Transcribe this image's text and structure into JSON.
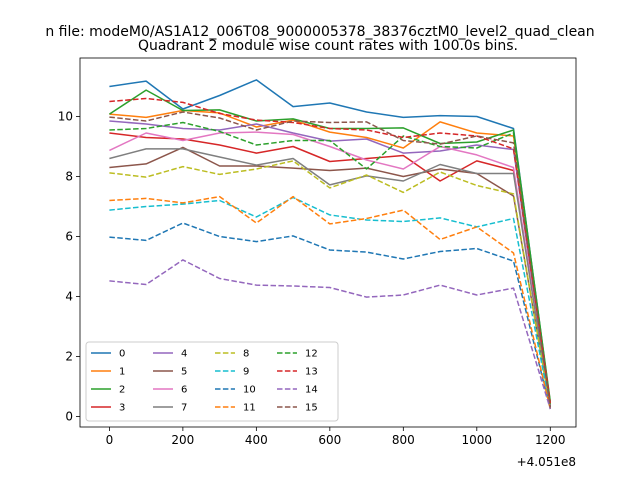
{
  "figure": {
    "suptitle": "n file: modeM0/AS1A12_006T08_9000005378_38376cztM0_level2_quad_clean",
    "offset_label": "+4.051e8"
  },
  "chart_data": {
    "type": "line",
    "title": "Quadrant 2 module wise count rates with 100.0s bins.",
    "xlabel": "",
    "ylabel": "",
    "x": [
      0,
      100,
      200,
      300,
      400,
      500,
      600,
      700,
      800,
      900,
      1000,
      1100,
      1200
    ],
    "xlim": [
      -80,
      1270
    ],
    "ylim": [
      -0.35,
      11.95
    ],
    "x_ticks": [
      "0",
      "200",
      "400",
      "600",
      "800",
      "1000",
      "1200"
    ],
    "y_ticks": [
      "0",
      "2",
      "4",
      "6",
      "8",
      "10"
    ],
    "grid": false,
    "legend": {
      "location": "lower left",
      "columns": 4
    },
    "series": [
      {
        "name": "0",
        "color": "#1f77b4",
        "style": "solid",
        "values": [
          11.0,
          11.18,
          10.25,
          10.7,
          11.22,
          10.33,
          10.45,
          10.15,
          9.97,
          10.03,
          10.0,
          9.6,
          0.45
        ]
      },
      {
        "name": "1",
        "color": "#ff7f0e",
        "style": "solid",
        "values": [
          10.08,
          9.97,
          10.2,
          10.12,
          9.65,
          9.88,
          9.48,
          9.3,
          8.95,
          9.82,
          9.45,
          9.35,
          0.4
        ]
      },
      {
        "name": "2",
        "color": "#2ca02c",
        "style": "solid",
        "values": [
          10.08,
          10.88,
          10.2,
          10.22,
          9.85,
          9.92,
          9.6,
          9.6,
          9.62,
          9.1,
          9.15,
          9.55,
          0.5
        ]
      },
      {
        "name": "3",
        "color": "#d62728",
        "style": "solid",
        "values": [
          9.45,
          9.3,
          9.25,
          9.05,
          8.78,
          9.0,
          8.5,
          8.6,
          8.7,
          7.85,
          8.52,
          8.2,
          0.35
        ]
      },
      {
        "name": "4",
        "color": "#9467bd",
        "style": "solid",
        "values": [
          9.85,
          9.75,
          9.6,
          9.55,
          9.75,
          9.45,
          9.18,
          9.25,
          8.78,
          8.85,
          9.05,
          8.9,
          0.3
        ]
      },
      {
        "name": "5",
        "color": "#8c564b",
        "style": "solid",
        "values": [
          8.3,
          8.42,
          8.97,
          8.35,
          8.35,
          8.28,
          8.2,
          8.28,
          8.0,
          8.25,
          8.1,
          7.35,
          0.3
        ]
      },
      {
        "name": "6",
        "color": "#e377c2",
        "style": "solid",
        "values": [
          8.87,
          9.45,
          9.2,
          9.45,
          9.48,
          9.4,
          9.0,
          8.55,
          8.25,
          9.0,
          8.72,
          8.3,
          0.3
        ]
      },
      {
        "name": "7",
        "color": "#7f7f7f",
        "style": "solid",
        "values": [
          8.6,
          8.92,
          8.92,
          8.65,
          8.38,
          8.6,
          7.72,
          8.02,
          7.85,
          8.4,
          8.1,
          8.1,
          0.3
        ]
      },
      {
        "name": "8",
        "color": "#bcbd22",
        "style": "dashed",
        "values": [
          8.12,
          7.98,
          8.33,
          8.07,
          8.25,
          8.52,
          7.62,
          8.05,
          7.47,
          8.15,
          7.7,
          7.42,
          0.25
        ]
      },
      {
        "name": "9",
        "color": "#17becf",
        "style": "dashed",
        "values": [
          6.88,
          7.0,
          7.08,
          7.2,
          6.65,
          7.3,
          6.72,
          6.55,
          6.5,
          6.62,
          6.32,
          6.6,
          0.3
        ]
      },
      {
        "name": "10",
        "color": "#1f77b4",
        "style": "dashed",
        "values": [
          5.98,
          5.87,
          6.45,
          6.0,
          5.83,
          6.02,
          5.55,
          5.48,
          5.25,
          5.5,
          5.6,
          5.18,
          0.25
        ]
      },
      {
        "name": "11",
        "color": "#ff7f0e",
        "style": "dashed",
        "values": [
          7.2,
          7.27,
          7.12,
          7.33,
          6.45,
          7.33,
          6.42,
          6.6,
          6.88,
          5.9,
          6.32,
          5.45,
          0.25
        ]
      },
      {
        "name": "12",
        "color": "#2ca02c",
        "style": "dashed",
        "values": [
          9.55,
          9.6,
          9.8,
          9.5,
          9.05,
          9.2,
          9.2,
          8.25,
          9.35,
          9.0,
          8.95,
          9.45,
          0.35
        ]
      },
      {
        "name": "13",
        "color": "#d62728",
        "style": "dashed",
        "values": [
          10.5,
          10.6,
          10.47,
          10.1,
          9.88,
          9.8,
          9.6,
          9.55,
          9.3,
          9.45,
          9.35,
          8.92,
          0.45
        ]
      },
      {
        "name": "14",
        "color": "#9467bd",
        "style": "dashed",
        "values": [
          4.52,
          4.4,
          5.22,
          4.6,
          4.38,
          4.35,
          4.3,
          3.98,
          4.05,
          4.38,
          4.05,
          4.28,
          0.25
        ]
      },
      {
        "name": "15",
        "color": "#8c564b",
        "style": "dashed",
        "values": [
          9.98,
          9.85,
          10.15,
          9.95,
          9.55,
          9.85,
          9.8,
          9.82,
          9.2,
          9.08,
          9.35,
          9.12,
          0.3
        ]
      }
    ]
  }
}
